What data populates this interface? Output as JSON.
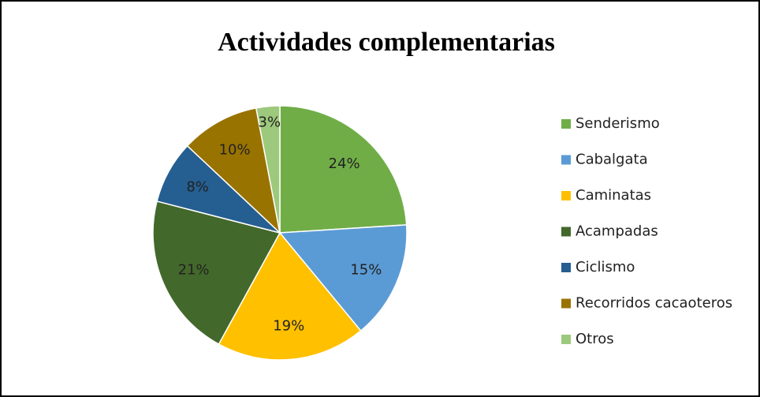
{
  "chart_data": {
    "type": "pie",
    "title": "Actividades complementarias",
    "categories": [
      "Senderismo",
      "Cabalgata",
      "Caminatas",
      "Acampadas",
      "Ciclismo",
      "Recorridos cacaoteros",
      "Otros"
    ],
    "values": [
      24,
      15,
      19,
      21,
      8,
      10,
      3
    ],
    "value_labels": [
      "24%",
      "15%",
      "19%",
      "21%",
      "8%",
      "10%",
      "3%"
    ],
    "colors": [
      "#70ad47",
      "#5b9bd5",
      "#ffc000",
      "#43682b",
      "#255e91",
      "#997300",
      "#9dc97c"
    ],
    "legend": "right"
  }
}
